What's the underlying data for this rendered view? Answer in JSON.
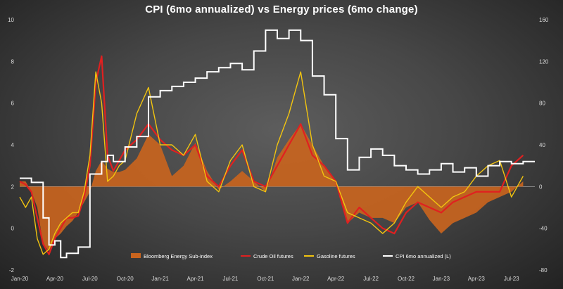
{
  "chart_data": {
    "type": "line",
    "title": "CPI (6mo annualized) vs Energy prices (6mo change)",
    "x_ticks": [
      "Jan-20",
      "Apr-20",
      "Jul-20",
      "Oct-20",
      "Jan-21",
      "Apr-21",
      "Jul-21",
      "Oct-21",
      "Jan-22",
      "Apr-22",
      "Jul-22",
      "Oct-22",
      "Jan-23",
      "Apr-23",
      "Jul-23"
    ],
    "y_left_ticks": [
      "-2",
      "0",
      "2",
      "4",
      "6",
      "8",
      "10"
    ],
    "y_right_ticks": [
      "-80",
      "-40",
      "0",
      "40",
      "80",
      "120",
      "160"
    ],
    "ylim_left": [
      -2,
      10
    ],
    "ylim_right": [
      -80,
      160
    ],
    "series": [
      {
        "name": "Bloomberg Energy Sub-index",
        "axis": "right",
        "style": "area",
        "color": "#c8641e",
        "x": [
          0,
          0.5,
          1,
          1.5,
          2,
          2.5,
          3,
          3.5,
          4,
          4.5,
          5,
          5.5,
          6,
          6.5,
          7,
          7.5,
          8,
          8.5,
          9,
          10,
          11,
          12,
          13,
          14,
          15,
          16,
          17,
          18,
          19,
          20,
          21,
          22,
          23,
          24,
          25,
          26,
          27,
          28,
          29,
          30,
          31,
          32,
          33,
          34,
          35,
          36,
          37,
          38,
          39,
          40,
          41,
          42,
          43
        ],
        "values": [
          5,
          5,
          -5,
          -20,
          -55,
          -62,
          -50,
          -45,
          -38,
          -33,
          -25,
          -15,
          -5,
          15,
          25,
          17,
          14,
          14,
          16,
          27,
          50,
          40,
          10,
          20,
          42,
          15,
          -3,
          5,
          15,
          5,
          -5,
          28,
          45,
          60,
          40,
          20,
          5,
          -35,
          -25,
          -30,
          -30,
          -35,
          -20,
          -15,
          -32,
          -45,
          -35,
          -30,
          -25,
          -15,
          -10,
          -5,
          5
        ]
      },
      {
        "name": "Crude Oil futures",
        "axis": "right",
        "style": "line",
        "color": "#e02020",
        "x": [
          0,
          0.5,
          1,
          1.5,
          2,
          2.5,
          3,
          3.5,
          4,
          4.5,
          5,
          5.5,
          6,
          6.5,
          7,
          7.5,
          8,
          8.5,
          9,
          10,
          11,
          12,
          13,
          14,
          15,
          16,
          17,
          18,
          19,
          20,
          21,
          22,
          23,
          24,
          25,
          26,
          27,
          28,
          29,
          30,
          31,
          32,
          33,
          34,
          35,
          36,
          37,
          38,
          39,
          40,
          41,
          42,
          43
        ],
        "values": [
          5,
          2,
          -5,
          -30,
          -55,
          -65,
          -50,
          -40,
          -30,
          -30,
          -28,
          -10,
          20,
          100,
          125,
          30,
          15,
          25,
          35,
          45,
          60,
          45,
          35,
          30,
          40,
          10,
          0,
          20,
          35,
          5,
          0,
          20,
          40,
          60,
          30,
          20,
          5,
          -35,
          -20,
          -30,
          -40,
          -45,
          -25,
          -15,
          -20,
          -25,
          -15,
          -10,
          -5,
          -5,
          -5,
          20,
          30
        ]
      },
      {
        "name": "Gasoline futures",
        "axis": "right",
        "style": "line",
        "color": "#f2c40f",
        "x": [
          0,
          0.5,
          1,
          1.5,
          2,
          2.5,
          3,
          3.5,
          4,
          4.5,
          5,
          5.5,
          6,
          6.5,
          7,
          7.5,
          8,
          8.5,
          9,
          10,
          11,
          12,
          13,
          14,
          15,
          16,
          17,
          18,
          19,
          20,
          21,
          22,
          23,
          24,
          25,
          26,
          27,
          28,
          29,
          30,
          31,
          32,
          33,
          34,
          35,
          36,
          37,
          38,
          39,
          40,
          41,
          42,
          43
        ],
        "values": [
          -10,
          -20,
          -10,
          -50,
          -65,
          -60,
          -45,
          -35,
          -30,
          -25,
          -25,
          -5,
          30,
          110,
          80,
          5,
          10,
          20,
          25,
          70,
          95,
          40,
          40,
          30,
          50,
          5,
          -5,
          25,
          40,
          0,
          -5,
          40,
          70,
          110,
          40,
          10,
          5,
          -25,
          -30,
          -35,
          -45,
          -35,
          -15,
          0,
          -10,
          -20,
          -10,
          -5,
          10,
          20,
          25,
          -10,
          10
        ]
      },
      {
        "name": "CPI 6mo annualized (L)",
        "axis": "left",
        "style": "step",
        "color": "#ffffff",
        "x": [
          0,
          1,
          2,
          2.5,
          3,
          3.5,
          4,
          5,
          6,
          7,
          7.5,
          8,
          9,
          10,
          11,
          12,
          13,
          14,
          15,
          16,
          17,
          18,
          19,
          20,
          21,
          22,
          23,
          24,
          25,
          26,
          27,
          28,
          29,
          30,
          31,
          32,
          33,
          34,
          35,
          36,
          37,
          38,
          39,
          40,
          41,
          42,
          43
        ],
        "values": [
          2.4,
          2.2,
          0.5,
          -0.8,
          -0.6,
          -1.4,
          -1.2,
          -0.9,
          2.6,
          3.2,
          3.5,
          3.2,
          3.9,
          4.4,
          6.3,
          6.6,
          6.8,
          7.0,
          7.2,
          7.5,
          7.7,
          7.9,
          7.6,
          8.5,
          9.5,
          9.1,
          9.5,
          9.0,
          7.3,
          6.4,
          4.3,
          2.8,
          3.4,
          3.8,
          3.5,
          3.0,
          2.8,
          2.6,
          2.8,
          3.1,
          2.7,
          2.9,
          2.5,
          3.0,
          3.2,
          3.1,
          3.2
        ]
      }
    ],
    "legend": [
      "Bloomberg Energy Sub-index",
      "Crude Oil futures",
      "Gasoline futures",
      "CPI 6mo annualized (L)"
    ],
    "legend_position": "bottom-center",
    "grid": false
  }
}
